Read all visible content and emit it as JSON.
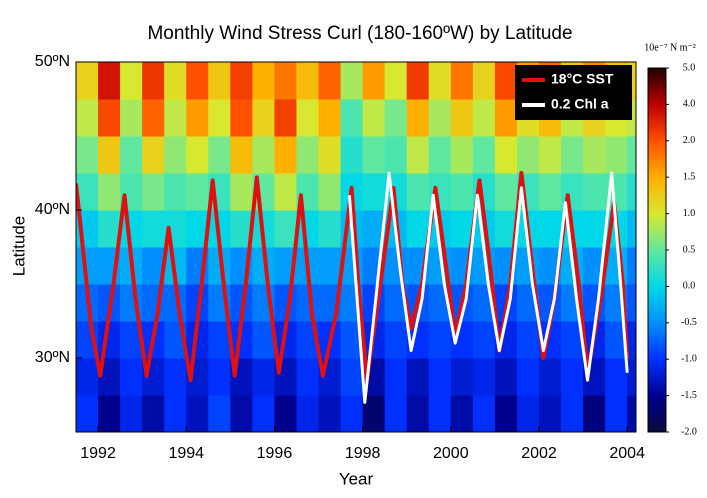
{
  "chart_data": {
    "type": "heatmap",
    "title": "Monthly Wind Stress Curl (180-160ºW) by Latitude",
    "x_label": "Year",
    "y_label": "Latitude",
    "xlim": [
      1991.5,
      2004.2
    ],
    "ylim": [
      25,
      50
    ],
    "xticks": [
      1992,
      1994,
      1996,
      1998,
      2000,
      2002,
      2004
    ],
    "yticks": [
      {
        "value": 30,
        "label": "30ºN"
      },
      {
        "value": 40,
        "label": "40ºN"
      },
      {
        "value": 50,
        "label": "50ºN"
      }
    ],
    "colorbar_label": "10e⁻⁷ N m⁻²",
    "colorbar_ticks": [
      {
        "value": -2,
        "label": "-2.0"
      },
      {
        "value": -1.5,
        "label": "-1.5"
      },
      {
        "value": -1,
        "label": "-1.0"
      },
      {
        "value": -0.5,
        "label": "-0.5"
      },
      {
        "value": 0,
        "label": "0.0"
      },
      {
        "value": 0.5,
        "label": "0.5"
      },
      {
        "value": 1,
        "label": "1.0"
      },
      {
        "value": 1.5,
        "label": "1.5"
      },
      {
        "value": 2,
        "label": "2.0"
      },
      {
        "value": 4,
        "label": "4.0"
      },
      {
        "value": 5,
        "label": "5.0"
      }
    ],
    "colorbar_colors": [
      "#0a0a3c",
      "#00008f",
      "#0030ff",
      "#0090ff",
      "#00d8e8",
      "#60e8a0",
      "#d8e830",
      "#ffb000",
      "#ff5000",
      "#c00000",
      "#200000"
    ],
    "x_edges": [
      1991.5,
      1992.0,
      1992.5,
      1993.0,
      1993.5,
      1994.0,
      1994.5,
      1995.0,
      1995.5,
      1996.0,
      1996.5,
      1997.0,
      1997.5,
      1998.0,
      1998.5,
      1999.0,
      1999.5,
      2000.0,
      2000.5,
      2001.0,
      2001.5,
      2002.0,
      2002.5,
      2003.0,
      2003.5,
      2004.0,
      2004.5
    ],
    "y_edges": [
      25,
      27.5,
      30,
      32.5,
      35,
      37.5,
      40,
      42.5,
      45,
      47.5,
      50
    ],
    "z": [
      [
        -1.0,
        -1.1,
        -0.9,
        -0.7,
        -0.4,
        -0.1,
        0.3,
        0.6,
        0.9,
        1.2
      ],
      [
        -1.5,
        -1.3,
        -1.1,
        -0.8,
        -0.4,
        0.2,
        0.7,
        1.3,
        2.2,
        3.5
      ],
      [
        -1.1,
        -1.0,
        -0.9,
        -0.6,
        -0.3,
        0.0,
        0.4,
        0.5,
        0.8,
        1.0
      ],
      [
        -1.4,
        -1.2,
        -1.0,
        -0.7,
        -0.5,
        0.1,
        0.6,
        1.2,
        1.9,
        2.6
      ],
      [
        -1.0,
        -1.0,
        -0.8,
        -0.7,
        -0.2,
        0.1,
        0.4,
        0.7,
        0.9,
        1.1
      ],
      [
        -1.3,
        -1.2,
        -1.1,
        -0.9,
        -0.6,
        0.0,
        0.5,
        1.0,
        1.6,
        2.0
      ],
      [
        -0.9,
        -1.0,
        -0.9,
        -0.6,
        -0.3,
        0.0,
        0.3,
        0.6,
        1.0,
        1.3
      ],
      [
        -1.4,
        -1.3,
        -1.0,
        -0.8,
        -0.5,
        0.2,
        0.8,
        1.4,
        2.0,
        2.4
      ],
      [
        -1.0,
        -1.1,
        -0.8,
        -0.6,
        -0.3,
        0.1,
        0.5,
        0.8,
        1.2,
        1.5
      ],
      [
        -1.5,
        -1.3,
        -1.1,
        -0.8,
        -0.4,
        0.3,
        0.9,
        1.5,
        2.4,
        1.8
      ],
      [
        -1.1,
        -1.0,
        -0.9,
        -0.7,
        -0.4,
        0.0,
        0.4,
        0.7,
        1.0,
        1.4
      ],
      [
        -1.3,
        -1.2,
        -1.0,
        -0.7,
        -0.4,
        0.2,
        0.7,
        1.1,
        1.5,
        1.9
      ],
      [
        -1.0,
        -0.9,
        -0.8,
        -0.6,
        -0.4,
        -0.2,
        0.0,
        0.2,
        0.4,
        0.8
      ],
      [
        -1.7,
        -1.4,
        -1.1,
        -0.9,
        -0.6,
        -0.3,
        0.1,
        0.5,
        0.9,
        1.6
      ],
      [
        -1.0,
        -1.0,
        -0.9,
        -0.7,
        -0.5,
        -0.2,
        0.1,
        0.4,
        0.6,
        1.0
      ],
      [
        -1.4,
        -1.3,
        -1.0,
        -0.8,
        -0.5,
        0.0,
        0.4,
        0.9,
        1.5,
        2.5
      ],
      [
        -1.0,
        -1.0,
        -0.9,
        -0.7,
        -0.4,
        -0.1,
        0.3,
        0.5,
        0.8,
        1.1
      ],
      [
        -1.4,
        -1.2,
        -1.0,
        -0.8,
        -0.5,
        0.0,
        0.4,
        0.8,
        1.3,
        1.8
      ],
      [
        -1.0,
        -1.1,
        -0.9,
        -0.7,
        -0.4,
        -0.1,
        0.2,
        0.5,
        0.9,
        1.2
      ],
      [
        -1.5,
        -1.3,
        -1.1,
        -0.9,
        -0.5,
        0.1,
        0.5,
        1.0,
        1.6,
        2.2
      ],
      [
        -1.1,
        -1.0,
        -0.9,
        -0.7,
        -0.4,
        0.0,
        0.3,
        0.7,
        1.1,
        1.6
      ],
      [
        -1.3,
        -1.2,
        -1.0,
        -0.8,
        -0.5,
        0.0,
        0.5,
        0.9,
        1.4,
        1.9
      ],
      [
        -1.0,
        -1.0,
        -0.9,
        -0.6,
        -0.3,
        0.0,
        0.3,
        0.6,
        0.9,
        1.3
      ],
      [
        -1.6,
        -1.3,
        -1.1,
        -0.8,
        -0.5,
        0.0,
        0.4,
        0.8,
        1.2,
        1.7
      ],
      [
        -1.0,
        -1.0,
        -0.8,
        -0.6,
        -0.3,
        0.0,
        0.4,
        0.7,
        1.0,
        1.4
      ],
      [
        -1.4,
        -1.2,
        -1.1,
        -0.8,
        -0.6,
        -0.2,
        0.2,
        0.5,
        0.9,
        1.2
      ]
    ],
    "series": [
      {
        "name": "18°C SST",
        "color": "#e01010",
        "x": [
          1991.5,
          1991.85,
          1992.05,
          1992.35,
          1992.6,
          1992.85,
          1993.1,
          1993.35,
          1993.6,
          1993.85,
          1994.1,
          1994.35,
          1994.6,
          1994.85,
          1995.1,
          1995.35,
          1995.6,
          1995.85,
          1996.1,
          1996.35,
          1996.6,
          1996.85,
          1997.1,
          1997.4,
          1997.75,
          1997.9,
          1998.1,
          1998.4,
          1998.7,
          1998.9,
          1999.1,
          1999.35,
          1999.65,
          1999.9,
          2000.1,
          2000.35,
          2000.65,
          2000.9,
          2001.1,
          2001.35,
          2001.6,
          2001.85,
          2002.1,
          2002.35,
          2002.65,
          2002.9,
          2003.1,
          2003.4,
          2003.7,
          2003.9,
          2004.0
        ],
        "values": [
          41.8,
          32,
          28.8,
          35,
          41,
          34,
          28.8,
          33,
          38.8,
          33,
          28.5,
          35,
          42,
          35,
          28.8,
          35,
          42.2,
          35,
          29,
          34,
          41,
          33,
          28.8,
          33,
          41.5,
          35,
          28.5,
          35,
          41.5,
          35,
          32,
          35,
          41.5,
          36,
          31.5,
          35,
          42,
          36,
          30.5,
          35,
          42.5,
          36,
          30,
          34,
          41,
          35,
          29,
          34,
          40.5,
          35,
          30
        ]
      },
      {
        "name": "0.2 Chl a",
        "color": "#ffffff",
        "x": [
          1997.7,
          1997.9,
          1998.05,
          1998.3,
          1998.6,
          1998.85,
          1999.1,
          1999.35,
          1999.6,
          1999.85,
          2000.1,
          2000.35,
          2000.6,
          2000.85,
          2001.1,
          2001.35,
          2001.6,
          2001.85,
          2002.1,
          2002.35,
          2002.6,
          2002.85,
          2003.1,
          2003.35,
          2003.65,
          2003.85,
          2004.0
        ],
        "values": [
          41,
          33,
          27,
          34,
          42.5,
          36,
          30.5,
          34,
          41,
          35,
          31,
          34,
          41,
          35,
          30.5,
          34,
          41.5,
          35,
          30.5,
          34,
          40.5,
          34,
          28.5,
          34,
          42.5,
          35,
          29
        ]
      }
    ]
  }
}
